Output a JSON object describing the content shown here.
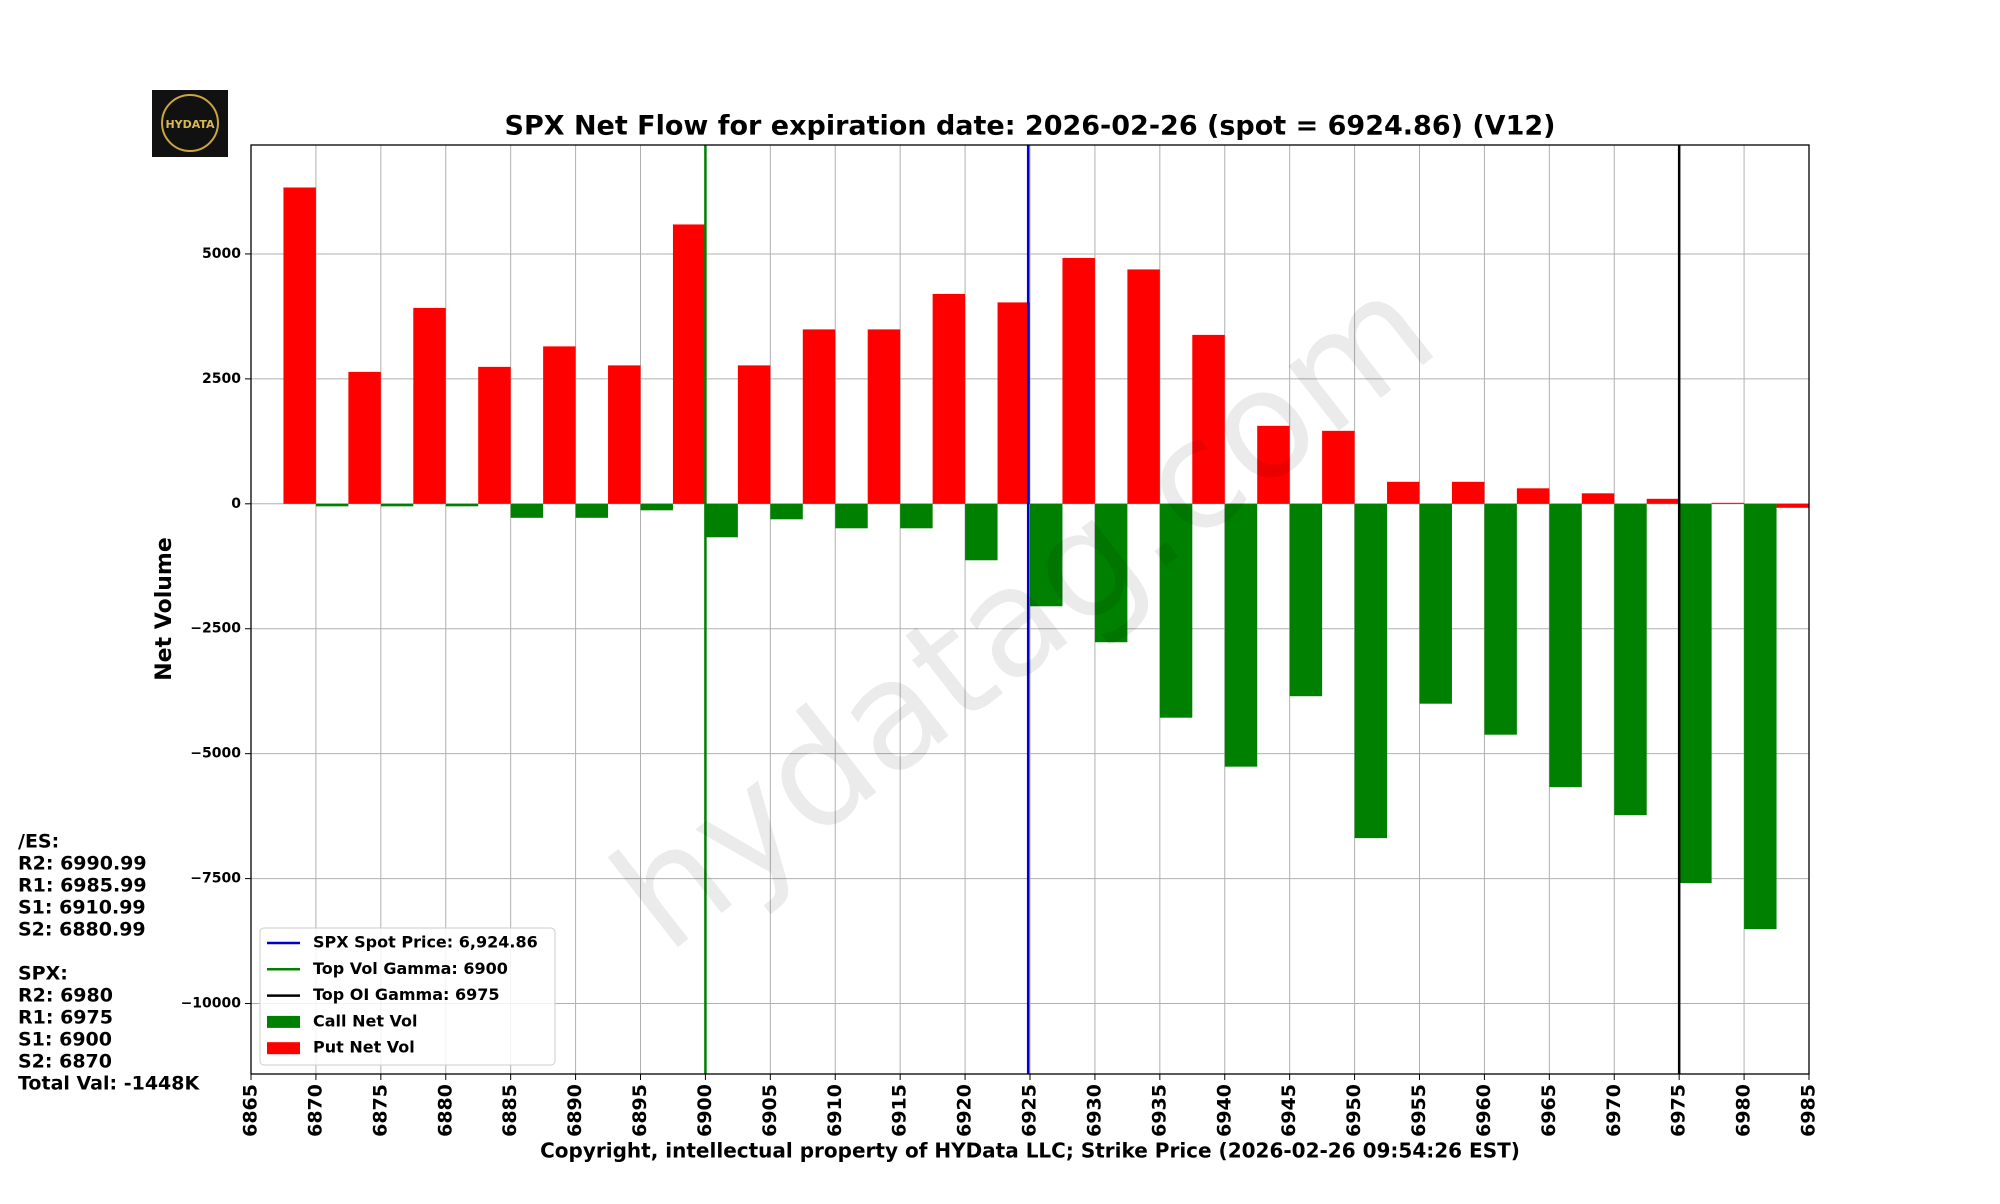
{
  "chart_data": {
    "type": "bar",
    "title": "SPX Net Flow for expiration date: 2026-02-26 (spot = 6924.86) (V12)",
    "x_label": "Copyright, intellectual property of HYData LLC; Strike Price (2026-02-26 09:54:26 EST)",
    "y_label": "Net Volume",
    "x": [
      6870,
      6875,
      6880,
      6885,
      6890,
      6895,
      6900,
      6905,
      6910,
      6915,
      6920,
      6925,
      6930,
      6935,
      6940,
      6945,
      6950,
      6955,
      6960,
      6965,
      6970,
      6975,
      6980,
      6985
    ],
    "series": [
      {
        "name": "Call Net Vol",
        "color": "#008000",
        "values": [
          -50,
          -50,
          -50,
          -280,
          -280,
          -130,
          -670,
          -310,
          -490,
          -490,
          -1130,
          -2050,
          -2770,
          -4280,
          -5260,
          -3850,
          -6690,
          -4000,
          -4620,
          -5670,
          -6230,
          -7590,
          -8510,
          null
        ]
      },
      {
        "name": "Put Net Vol",
        "color": "#ff0000",
        "values": [
          6330,
          2640,
          3920,
          2740,
          3150,
          2770,
          5590,
          2770,
          3490,
          3490,
          4200,
          4030,
          4920,
          4690,
          3380,
          1560,
          1460,
          440,
          440,
          310,
          210,
          100,
          20,
          -80
        ]
      }
    ],
    "lines": [
      {
        "name": "SPX Spot Price: 6,924.86",
        "color": "#0000cc",
        "x": 6924.86
      },
      {
        "name": "Top Vol Gamma: 6900",
        "color": "#008000",
        "x": 6900
      },
      {
        "name": "Top OI Gamma: 6975",
        "color": "#000000",
        "x": 6975
      }
    ],
    "xlim": [
      6865,
      6985
    ],
    "xticks": [
      6865,
      6870,
      6875,
      6880,
      6885,
      6890,
      6895,
      6900,
      6905,
      6910,
      6915,
      6920,
      6925,
      6930,
      6935,
      6940,
      6945,
      6950,
      6955,
      6960,
      6965,
      6970,
      6975,
      6980,
      6985
    ],
    "ylim": [
      -11410,
      7180
    ],
    "yticks": [
      {
        "value": -10000,
        "label": "−10000"
      },
      {
        "value": -7500,
        "label": "−7500"
      },
      {
        "value": -5000,
        "label": "−5000"
      },
      {
        "value": -2500,
        "label": "−2500"
      },
      0,
      2500,
      5000
    ],
    "grid": true,
    "legend": "lower left",
    "watermark": "hydatag.com",
    "logo_text": "HYDATA",
    "side_notes": [
      "/ES:",
      "R2: 6990.99",
      "R1: 6985.99",
      "S1: 6910.99",
      "S2: 6880.99",
      "",
      "SPX:",
      "R2: 6980",
      "R1: 6975",
      "S1: 6900",
      "S2: 6870",
      "Total Val: -1448K"
    ]
  }
}
